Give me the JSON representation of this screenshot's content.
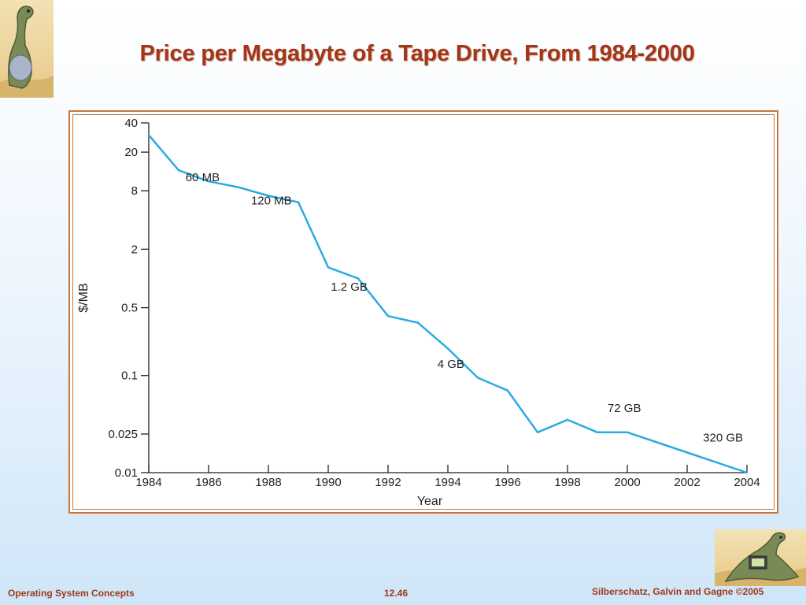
{
  "slide": {
    "title": "Price per Megabyte of a Tape Drive, From 1984-2000"
  },
  "footer": {
    "left": "Operating System Concepts",
    "center": "12.46",
    "right": "Silberschatz, Galvin and Gagne ©2005"
  },
  "colors": {
    "title": "#a0361a",
    "frame": "#c8773a",
    "line": "#29abe2"
  },
  "chart_data": {
    "type": "line",
    "xlabel": "Year",
    "ylabel": "$/MB",
    "y_scale": "log",
    "xlim": [
      1984,
      2004
    ],
    "ylim": [
      0.01,
      40
    ],
    "grid": false,
    "x_ticks": [
      "1984",
      "1986",
      "1988",
      "1990",
      "1992",
      "1994",
      "1996",
      "1998",
      "2000",
      "2002",
      "2004"
    ],
    "y_ticks": [
      "40",
      "20",
      "8",
      "2",
      "0.5",
      "0.1",
      "0.025",
      "0.01"
    ],
    "series": [
      {
        "x": [
          1984,
          1985,
          1986,
          1987,
          1988,
          1989,
          1990,
          1991,
          1992,
          1993,
          1994,
          1995,
          1996,
          1997,
          1998,
          1999,
          2000,
          2004
        ],
        "y": [
          30,
          13,
          10,
          8.7,
          7.1,
          6.1,
          1.3,
          1.0,
          0.41,
          0.35,
          0.19,
          0.095,
          0.07,
          0.026,
          0.035,
          0.026,
          0.026,
          0.01
        ]
      }
    ],
    "annotations": [
      {
        "text": "60 MB",
        "x": 1985.8,
        "y": 10
      },
      {
        "text": "120 MB",
        "x": 1988.1,
        "y": 5.8
      },
      {
        "text": "1.2 GB",
        "x": 1990.7,
        "y": 0.75
      },
      {
        "text": "4 GB",
        "x": 1994.1,
        "y": 0.12
      },
      {
        "text": "72 GB",
        "x": 1999.9,
        "y": 0.042
      },
      {
        "text": "320 GB",
        "x": 2003.2,
        "y": 0.021
      }
    ]
  }
}
